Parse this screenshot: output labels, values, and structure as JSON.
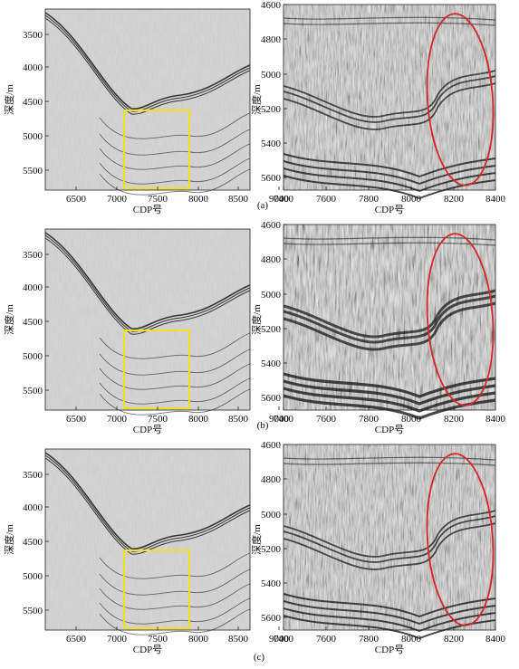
{
  "left_axes": {
    "x_ticks": [
      "6500",
      "7000",
      "7500",
      "8000",
      "8500",
      "9000"
    ],
    "y_ticks": [
      "3500",
      "4000",
      "4500",
      "5000",
      "5500"
    ],
    "x_label": "CDP号",
    "y_label": "深度/m"
  },
  "right_axes": {
    "x_ticks": [
      "7400",
      "7600",
      "7800",
      "8000",
      "8200",
      "8400"
    ],
    "y_ticks": [
      "4600",
      "4800",
      "5000",
      "5200",
      "5400",
      "5600"
    ],
    "x_label": "CDP号",
    "y_label": "深度/m"
  },
  "panels": [
    {
      "id": "a",
      "tag": "(a)"
    },
    {
      "id": "b",
      "tag": "(b)"
    },
    {
      "id": "c",
      "tag": "(c)"
    }
  ],
  "colors": {
    "zoom_box": "#f2e21a",
    "highlight_ellipse": "#d8262a",
    "background": "#d9d9d9",
    "reflector": "#1a1a1a"
  }
}
